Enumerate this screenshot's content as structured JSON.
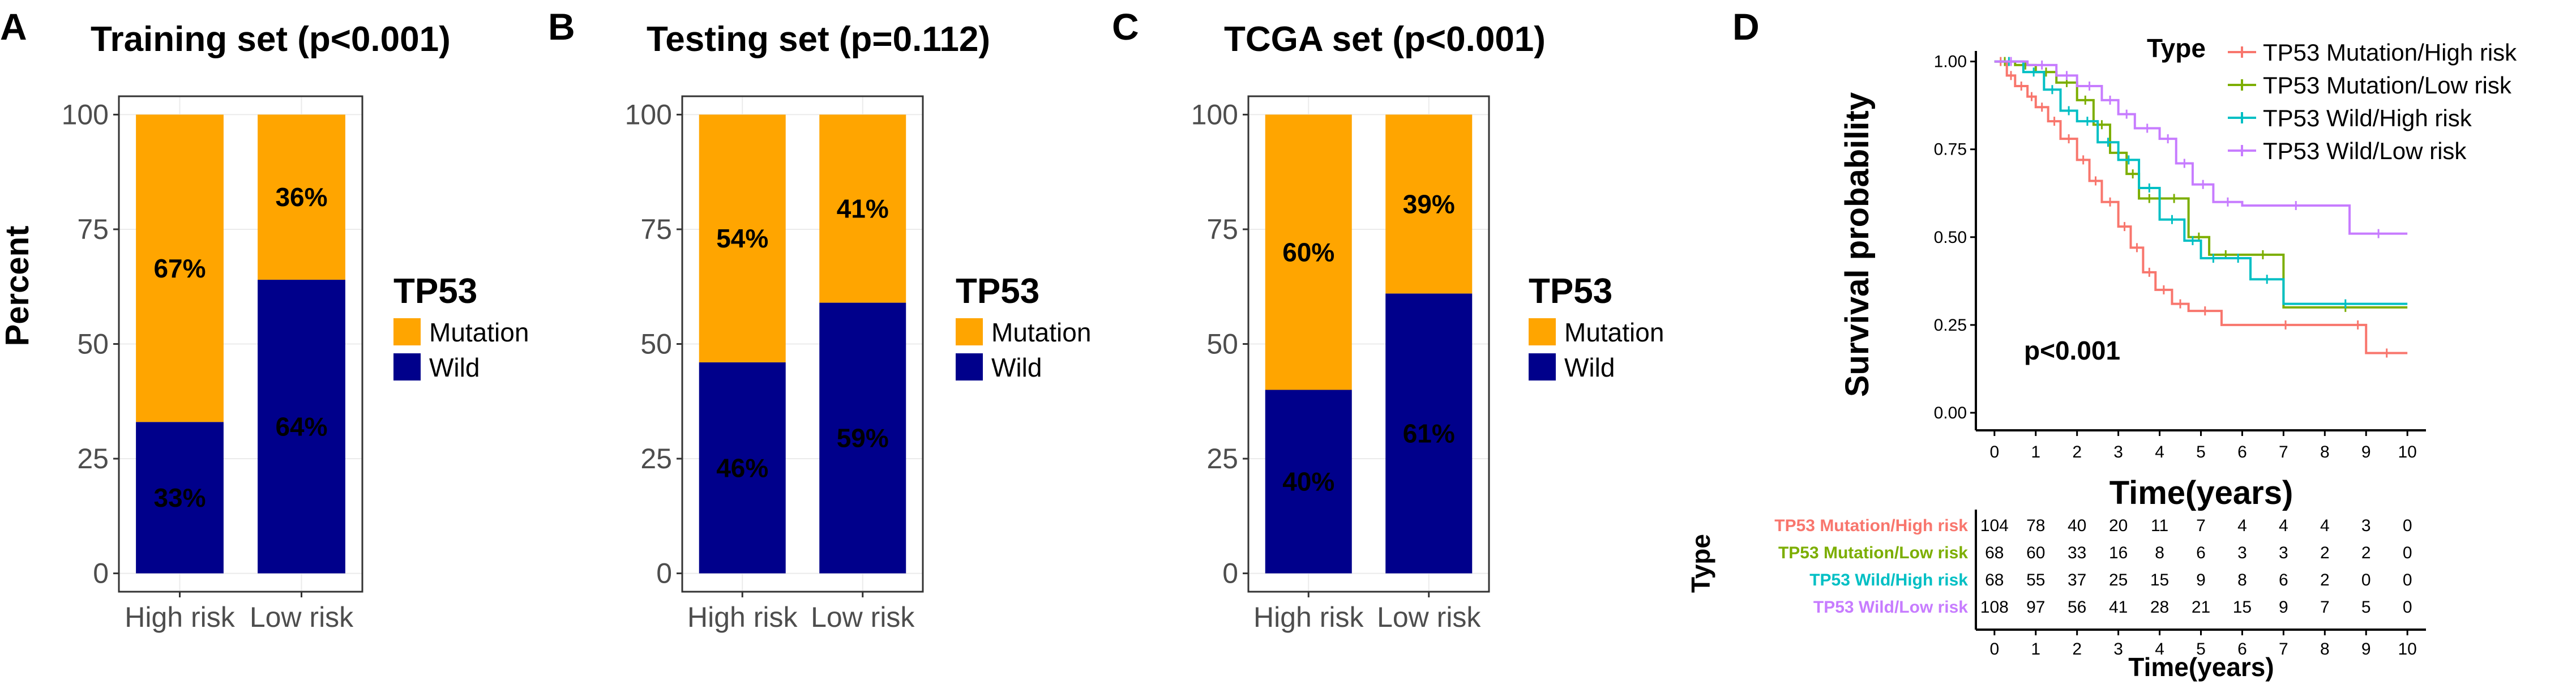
{
  "colors": {
    "mutation": "#FFA500",
    "wild": "#00008B",
    "km": [
      "#F8766D",
      "#7CAE00",
      "#00BFC4",
      "#C77CFF"
    ]
  },
  "panels": [
    {
      "letter": "A",
      "title": "Training set (p<0.001)",
      "ylabel": "Percent"
    },
    {
      "letter": "B",
      "title": "Testing set (p=0.112)",
      "ylabel": ""
    },
    {
      "letter": "C",
      "title": "TCGA set (p<0.001)",
      "ylabel": ""
    },
    {
      "letter": "D",
      "title": "",
      "ylabel": "Survival probability"
    }
  ],
  "bar_legend": {
    "title": "TP53",
    "mutation": "Mutation",
    "wild": "Wild"
  },
  "km_legend": {
    "title": "Type"
  },
  "km_pvalue": "p<0.001",
  "risk_table": {
    "title": "Type",
    "xlabel": "Time(years)",
    "rows": [
      {
        "name": "TP53 Mutation/High risk",
        "values": [
          "104",
          "78",
          "40",
          "20",
          "11",
          "7",
          "4",
          "4",
          "4",
          "3",
          "0"
        ]
      },
      {
        "name": "TP53 Mutation/Low risk",
        "values": [
          "68",
          "60",
          "33",
          "16",
          "8",
          "6",
          "3",
          "3",
          "2",
          "2",
          "0"
        ]
      },
      {
        "name": "TP53 Wild/High risk",
        "values": [
          "68",
          "55",
          "37",
          "25",
          "15",
          "9",
          "8",
          "6",
          "2",
          "0",
          "0"
        ]
      },
      {
        "name": "TP53 Wild/Low risk",
        "values": [
          "108",
          "97",
          "56",
          "41",
          "28",
          "21",
          "15",
          "9",
          "7",
          "5",
          "0"
        ]
      }
    ]
  },
  "chart_data": [
    {
      "type": "bar",
      "stacked": true,
      "title": "Training set (p<0.001)",
      "categories": [
        "High risk",
        "Low risk"
      ],
      "xlabel": "",
      "ylabel": "Percent",
      "ylim": [
        0,
        100
      ],
      "yticks": [
        "0",
        "25",
        "50",
        "75",
        "100"
      ],
      "series": [
        {
          "name": "Wild",
          "values": [
            33,
            64
          ],
          "labels": [
            "33%",
            "64%"
          ]
        },
        {
          "name": "Mutation",
          "values": [
            67,
            36
          ],
          "labels": [
            "67%",
            "36%"
          ]
        }
      ],
      "legend": {
        "title": "TP53",
        "entries": [
          "Mutation",
          "Wild"
        ],
        "position": "right"
      }
    },
    {
      "type": "bar",
      "stacked": true,
      "title": "Testing set (p=0.112)",
      "categories": [
        "High risk",
        "Low risk"
      ],
      "xlabel": "",
      "ylabel": "",
      "ylim": [
        0,
        100
      ],
      "yticks": [
        "0",
        "25",
        "50",
        "75",
        "100"
      ],
      "series": [
        {
          "name": "Wild",
          "values": [
            46,
            59
          ],
          "labels": [
            "46%",
            "59%"
          ]
        },
        {
          "name": "Mutation",
          "values": [
            54,
            41
          ],
          "labels": [
            "54%",
            "41%"
          ]
        }
      ],
      "legend": {
        "title": "TP53",
        "entries": [
          "Mutation",
          "Wild"
        ],
        "position": "right"
      }
    },
    {
      "type": "bar",
      "stacked": true,
      "title": "TCGA set (p<0.001)",
      "categories": [
        "High risk",
        "Low risk"
      ],
      "xlabel": "",
      "ylabel": "",
      "ylim": [
        0,
        100
      ],
      "yticks": [
        "0",
        "25",
        "50",
        "75",
        "100"
      ],
      "series": [
        {
          "name": "Wild",
          "values": [
            40,
            61
          ],
          "labels": [
            "40%",
            "61%"
          ]
        },
        {
          "name": "Mutation",
          "values": [
            60,
            39
          ],
          "labels": [
            "60%",
            "39%"
          ]
        }
      ],
      "legend": {
        "title": "TP53",
        "entries": [
          "Mutation",
          "Wild"
        ],
        "position": "right"
      }
    },
    {
      "type": "line",
      "subtype": "kaplan-meier",
      "xlabel": "Time(years)",
      "ylabel": "Survival probability",
      "xlim": [
        0,
        10
      ],
      "ylim": [
        0,
        1
      ],
      "xticks": [
        "0",
        "1",
        "2",
        "3",
        "4",
        "5",
        "6",
        "7",
        "8",
        "9",
        "10"
      ],
      "yticks": [
        "0.00",
        "0.25",
        "0.50",
        "0.75",
        "1.00"
      ],
      "pvalue": "p<0.001",
      "legend": {
        "title": "Type",
        "position": "top-right"
      },
      "series": [
        {
          "name": "TP53 Mutation/High risk",
          "x": [
            0,
            0.3,
            0.5,
            0.8,
            1.0,
            1.3,
            1.6,
            2.0,
            2.3,
            2.6,
            3.0,
            3.3,
            3.6,
            3.9,
            4.3,
            4.7,
            5.5,
            8.6,
            9.0,
            10.0
          ],
          "y": [
            1.0,
            0.96,
            0.93,
            0.9,
            0.87,
            0.83,
            0.78,
            0.72,
            0.66,
            0.6,
            0.53,
            0.47,
            0.4,
            0.35,
            0.31,
            0.29,
            0.25,
            0.25,
            0.17,
            0.17
          ]
        },
        {
          "name": "TP53 Mutation/Low risk",
          "x": [
            0,
            0.5,
            1.0,
            1.5,
            2.0,
            2.4,
            2.8,
            3.2,
            3.5,
            4.0,
            4.7,
            5.2,
            6.0,
            7.0,
            10.0
          ],
          "y": [
            1.0,
            0.99,
            0.97,
            0.94,
            0.89,
            0.82,
            0.74,
            0.68,
            0.61,
            0.61,
            0.5,
            0.45,
            0.45,
            0.3,
            0.3
          ]
        },
        {
          "name": "TP53 Wild/High risk",
          "x": [
            0,
            0.7,
            1.2,
            1.6,
            2.0,
            2.5,
            3.0,
            3.5,
            4.0,
            4.6,
            5.0,
            5.6,
            6.2,
            7.0,
            10.0
          ],
          "y": [
            1.0,
            0.97,
            0.92,
            0.86,
            0.83,
            0.77,
            0.72,
            0.64,
            0.55,
            0.49,
            0.44,
            0.44,
            0.38,
            0.31,
            0.31
          ]
        },
        {
          "name": "TP53 Wild/Low risk",
          "x": [
            0,
            0.8,
            1.5,
            2.0,
            2.6,
            3.0,
            3.4,
            4.0,
            4.4,
            4.8,
            5.3,
            6.0,
            8.6,
            10.0
          ],
          "y": [
            1.0,
            0.99,
            0.96,
            0.93,
            0.89,
            0.85,
            0.81,
            0.78,
            0.71,
            0.65,
            0.6,
            0.59,
            0.51,
            0.51
          ]
        }
      ]
    }
  ]
}
